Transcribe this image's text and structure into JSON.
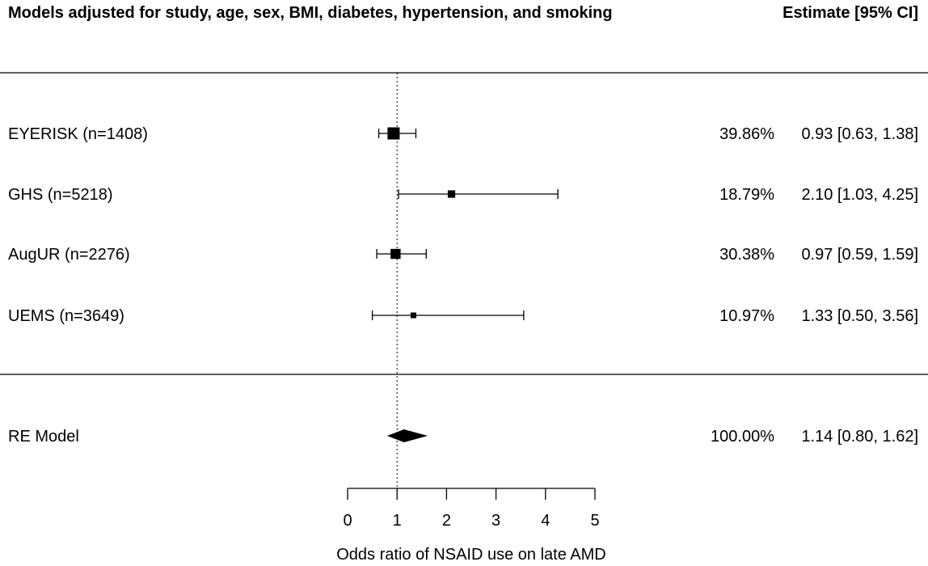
{
  "chart_data": {
    "type": "forest",
    "title": "Models adjusted for study, age, sex, BMI, diabetes, hypertension, and smoking",
    "estimate_header": "Estimate [95% CI]",
    "xlabel": "Odds ratio of NSAID use on late AMD",
    "xlim": [
      0,
      5
    ],
    "xticks": [
      0,
      1,
      2,
      3,
      4,
      5
    ],
    "reference_line": 1,
    "studies": [
      {
        "label": "EYERISK (n=1408)",
        "weight": "39.86%",
        "ci_text": "0.93 [0.63, 1.38]",
        "estimate": 0.93,
        "lower": 0.63,
        "upper": 1.38,
        "weight_value": 39.86
      },
      {
        "label": "GHS (n=5218)",
        "weight": "18.79%",
        "ci_text": "2.10 [1.03, 4.25]",
        "estimate": 2.1,
        "lower": 1.03,
        "upper": 4.25,
        "weight_value": 18.79
      },
      {
        "label": "AugUR (n=2276)",
        "weight": "30.38%",
        "ci_text": "0.97 [0.59, 1.59]",
        "estimate": 0.97,
        "lower": 0.59,
        "upper": 1.59,
        "weight_value": 30.38
      },
      {
        "label": "UEMS (n=3649)",
        "weight": "10.97%",
        "ci_text": "1.33 [0.50, 3.56]",
        "estimate": 1.33,
        "lower": 0.5,
        "upper": 3.56,
        "weight_value": 10.97
      }
    ],
    "summary": {
      "label": "RE Model",
      "weight": "100.00%",
      "ci_text": "1.14 [0.80, 1.62]",
      "estimate": 1.14,
      "lower": 0.8,
      "upper": 1.62
    }
  }
}
